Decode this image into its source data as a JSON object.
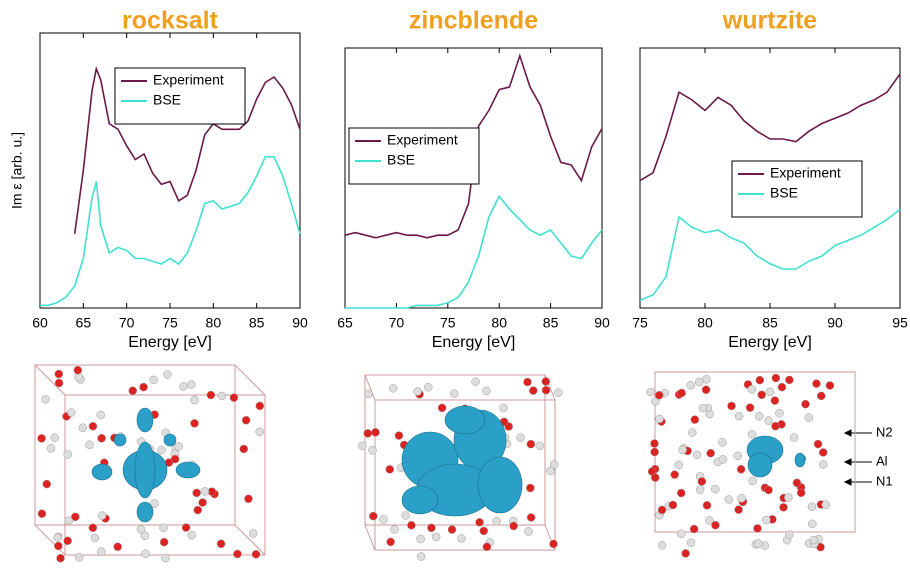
{
  "chart_data": [
    {
      "type": "line",
      "title": "rocksalt",
      "xlabel": "Energy [eV]",
      "ylabel": "Im ε  [arb. u.]",
      "x": [
        60,
        61,
        62,
        63,
        64,
        65,
        66,
        66.5,
        67,
        68,
        69,
        70,
        71,
        72,
        73,
        74,
        75,
        76,
        77,
        78,
        79,
        80,
        81,
        82,
        83,
        84,
        85,
        86,
        87,
        88,
        89,
        90
      ],
      "series": [
        {
          "name": "Experiment",
          "color": "#6b1a4a",
          "values": [
            null,
            null,
            null,
            null,
            0.27,
            0.5,
            0.79,
            0.87,
            0.83,
            0.67,
            0.65,
            0.59,
            0.54,
            0.56,
            0.49,
            0.45,
            0.46,
            0.39,
            0.41,
            0.5,
            0.63,
            0.67,
            0.65,
            0.65,
            0.65,
            0.68,
            0.76,
            0.82,
            0.84,
            0.8,
            0.74,
            0.65
          ]
        },
        {
          "name": "BSE",
          "color": "#40e0d0",
          "values": [
            0.01,
            0.01,
            0.02,
            0.04,
            0.08,
            0.18,
            0.4,
            0.46,
            0.3,
            0.2,
            0.22,
            0.21,
            0.18,
            0.18,
            0.17,
            0.16,
            0.18,
            0.16,
            0.2,
            0.28,
            0.38,
            0.39,
            0.36,
            0.37,
            0.38,
            0.42,
            0.48,
            0.55,
            0.55,
            0.48,
            0.38,
            0.27
          ]
        }
      ],
      "xlim": [
        60,
        90
      ],
      "xticks": [
        60,
        65,
        70,
        75,
        80,
        85,
        90
      ],
      "ylim": [
        0,
        1
      ],
      "legend": "upper center"
    },
    {
      "type": "line",
      "title": "zincblende",
      "xlabel": "Energy [eV]",
      "x": [
        65,
        66,
        67,
        68,
        69,
        70,
        71,
        72,
        73,
        74,
        75,
        76,
        77,
        78,
        79,
        80,
        81,
        82,
        83,
        84,
        85,
        86,
        87,
        88,
        89,
        90
      ],
      "series": [
        {
          "name": "Experiment",
          "color": "#6b1a4a",
          "values": [
            0.28,
            0.29,
            0.28,
            0.27,
            0.28,
            0.29,
            0.28,
            0.28,
            0.27,
            0.28,
            0.28,
            0.3,
            0.4,
            0.7,
            0.76,
            0.84,
            0.85,
            0.97,
            0.85,
            0.78,
            0.66,
            0.56,
            0.55,
            0.49,
            0.62,
            0.69
          ]
        },
        {
          "name": "BSE",
          "color": "#40e0d0",
          "values": [
            0,
            0,
            0,
            0,
            0,
            0,
            0,
            0.01,
            0.01,
            0.01,
            0.02,
            0.04,
            0.1,
            0.2,
            0.35,
            0.43,
            0.38,
            0.34,
            0.3,
            0.28,
            0.3,
            0.25,
            0.2,
            0.19,
            0.25,
            0.3
          ]
        }
      ],
      "xlim": [
        65,
        90
      ],
      "xticks": [
        65,
        70,
        75,
        80,
        85,
        90
      ],
      "ylim": [
        0,
        1
      ],
      "legend": "center left"
    },
    {
      "type": "line",
      "title": "wurtzite",
      "xlabel": "Energy [eV]",
      "x": [
        75,
        76,
        77,
        78,
        79,
        80,
        81,
        82,
        83,
        84,
        85,
        86,
        87,
        88,
        89,
        90,
        91,
        92,
        93,
        94,
        95
      ],
      "series": [
        {
          "name": "Experiment",
          "color": "#6b1a4a",
          "values": [
            0.49,
            0.52,
            0.66,
            0.83,
            0.8,
            0.76,
            0.81,
            0.78,
            0.72,
            0.68,
            0.65,
            0.65,
            0.64,
            0.68,
            0.71,
            0.73,
            0.75,
            0.78,
            0.8,
            0.83,
            0.9
          ]
        },
        {
          "name": "BSE",
          "color": "#40e0d0",
          "values": [
            0.03,
            0.05,
            0.12,
            0.35,
            0.31,
            0.29,
            0.3,
            0.27,
            0.25,
            0.2,
            0.17,
            0.15,
            0.15,
            0.18,
            0.2,
            0.24,
            0.26,
            0.28,
            0.31,
            0.34,
            0.38
          ]
        }
      ],
      "xlim": [
        75,
        95
      ],
      "xticks": [
        75,
        80,
        85,
        90,
        95
      ],
      "ylim": [
        0,
        1
      ],
      "legend": "center right"
    }
  ],
  "structure_labels": [
    "N2",
    "Al",
    "N1"
  ]
}
